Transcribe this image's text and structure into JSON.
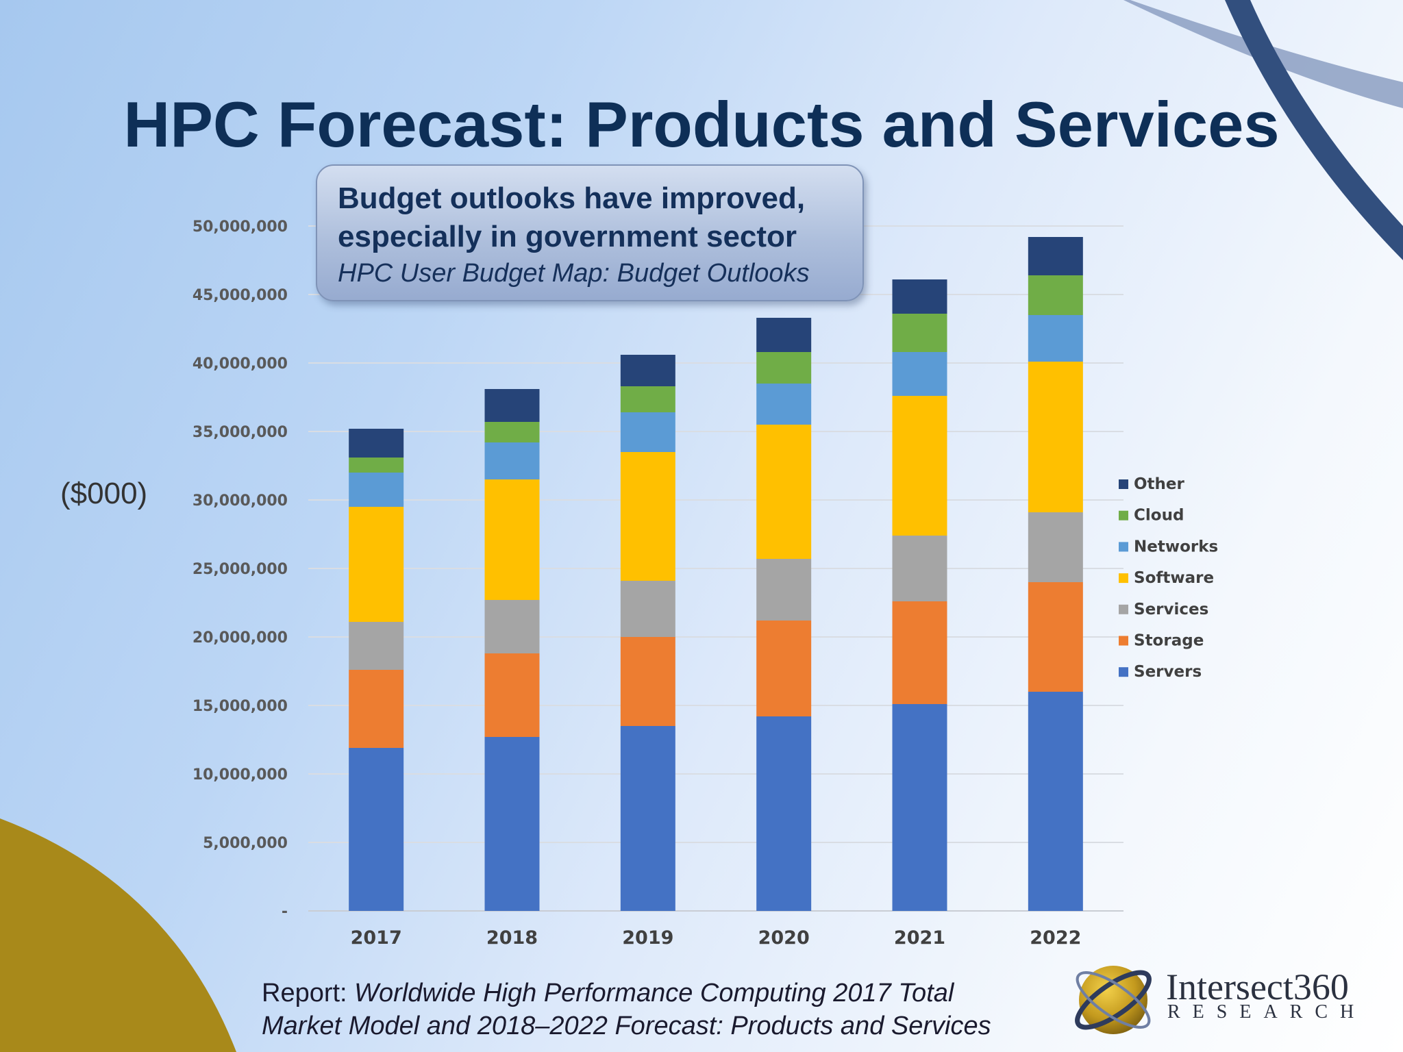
{
  "slide": {
    "title": "HPC Forecast: Products and Services",
    "callout": {
      "line1": "Budget outlooks have improved,",
      "line2": "especially in government sector",
      "line3": "HPC User Budget Map: Budget Outlooks"
    },
    "unit_label": "($000)",
    "report_prefix": "Report: ",
    "report_title_1": "Worldwide High Performance Computing 2017 Total",
    "report_title_2": "Market Model and 2018–2022 Forecast: Products and Services",
    "logo_name": "Intersect360",
    "logo_sub": "RESEARCH"
  },
  "chart_data": {
    "type": "bar",
    "stacked": true,
    "categories": [
      "2017",
      "2018",
      "2019",
      "2020",
      "2021",
      "2022"
    ],
    "ylim": [
      0,
      50000000
    ],
    "yticks": [
      0,
      5000000,
      10000000,
      15000000,
      20000000,
      25000000,
      30000000,
      35000000,
      40000000,
      45000000,
      50000000
    ],
    "ytick_labels": [
      "-",
      "5,000,000",
      "10,000,000",
      "15,000,000",
      "20,000,000",
      "25,000,000",
      "30,000,000",
      "35,000,000",
      "40,000,000",
      "45,000,000",
      "50,000,000"
    ],
    "grid": true,
    "legend_position": "right",
    "series": [
      {
        "name": "Servers",
        "color": "#4472c4",
        "values": [
          11900000,
          12700000,
          13500000,
          14200000,
          15100000,
          16000000
        ]
      },
      {
        "name": "Storage",
        "color": "#ed7d31",
        "values": [
          5700000,
          6100000,
          6500000,
          7000000,
          7500000,
          8000000
        ]
      },
      {
        "name": "Services",
        "color": "#a5a5a5",
        "values": [
          3500000,
          3900000,
          4100000,
          4500000,
          4800000,
          5100000
        ]
      },
      {
        "name": "Software",
        "color": "#ffc000",
        "values": [
          8400000,
          8800000,
          9400000,
          9800000,
          10200000,
          11000000
        ]
      },
      {
        "name": "Networks",
        "color": "#5b9bd5",
        "values": [
          2500000,
          2700000,
          2900000,
          3000000,
          3200000,
          3400000
        ]
      },
      {
        "name": "Cloud",
        "color": "#70ad47",
        "values": [
          1100000,
          1500000,
          1900000,
          2300000,
          2800000,
          2900000
        ]
      },
      {
        "name": "Other",
        "color": "#264478",
        "values": [
          2100000,
          2400000,
          2300000,
          2500000,
          2500000,
          2800000
        ]
      }
    ]
  }
}
